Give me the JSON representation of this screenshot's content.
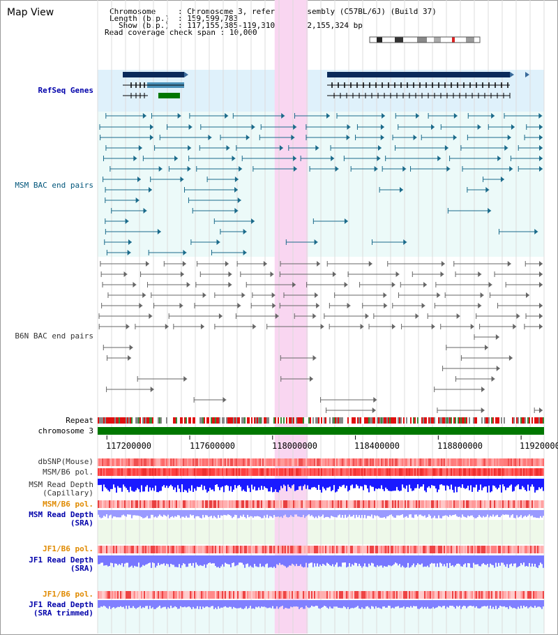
{
  "title": "Map View",
  "info": {
    "chromosome_label": "Chromosome",
    "chromosome_value": "Chromosome 3, reference assembly (C57BL/6J) (Build 37)",
    "length_label": "Length (b.p.)",
    "length_value": "159,599,783",
    "show_label": "Show (b.p.)",
    "show_value": "117,155,385-119,310,708 : 2,155,324 bp",
    "coverage_label": "Read coverage check span",
    "coverage_value": "10,000"
  },
  "tracks": {
    "refseq": "RefSeq Genes",
    "msm_bac": "MSM BAC end pairs",
    "b6n_bac": "B6N BAC end pairs",
    "repeat": "Repeat",
    "chromosome": "chromosome 3",
    "dbsnp": "dbSNP(Mouse)",
    "msm_b6_pol": "MSM/B6 pol.",
    "msm_read_depth_cap_1": "MSM Read Depth",
    "msm_read_depth_cap_2": "(Capillary)",
    "msm_b6_pol_sra": "MSM/B6 pol.",
    "msm_read_depth_sra_1": "MSM Read Depth",
    "msm_read_depth_sra_2": "(SRA)",
    "jf1_b6_pol": "JF1/B6 pol.",
    "jf1_read_depth_1": "JF1 Read Depth",
    "jf1_read_depth_2": "(SRA)",
    "jf1_b6_pol_2": "JF1/B6 pol.",
    "jf1_read_depth_trim_1": "JF1 Read Depth",
    "jf1_read_depth_trim_2": "(SRA trimmed)"
  },
  "axis": {
    "ticks": [
      "117200000",
      "117600000",
      "118000000",
      "118400000",
      "118800000",
      "119200000"
    ],
    "start": 117155385,
    "end": 119310708
  },
  "highlight": {
    "start": 118010000,
    "end": 118170000
  },
  "colors": {
    "highlight": "#f9d6f1",
    "refseq_bg": "#dff1fb",
    "bac_bg": "#ecfaf9",
    "gene": "#0a2a5a",
    "chrom_bar": "#007700",
    "msm_depth": "#1a1aff",
    "jf1_depth": "#7777ff"
  }
}
